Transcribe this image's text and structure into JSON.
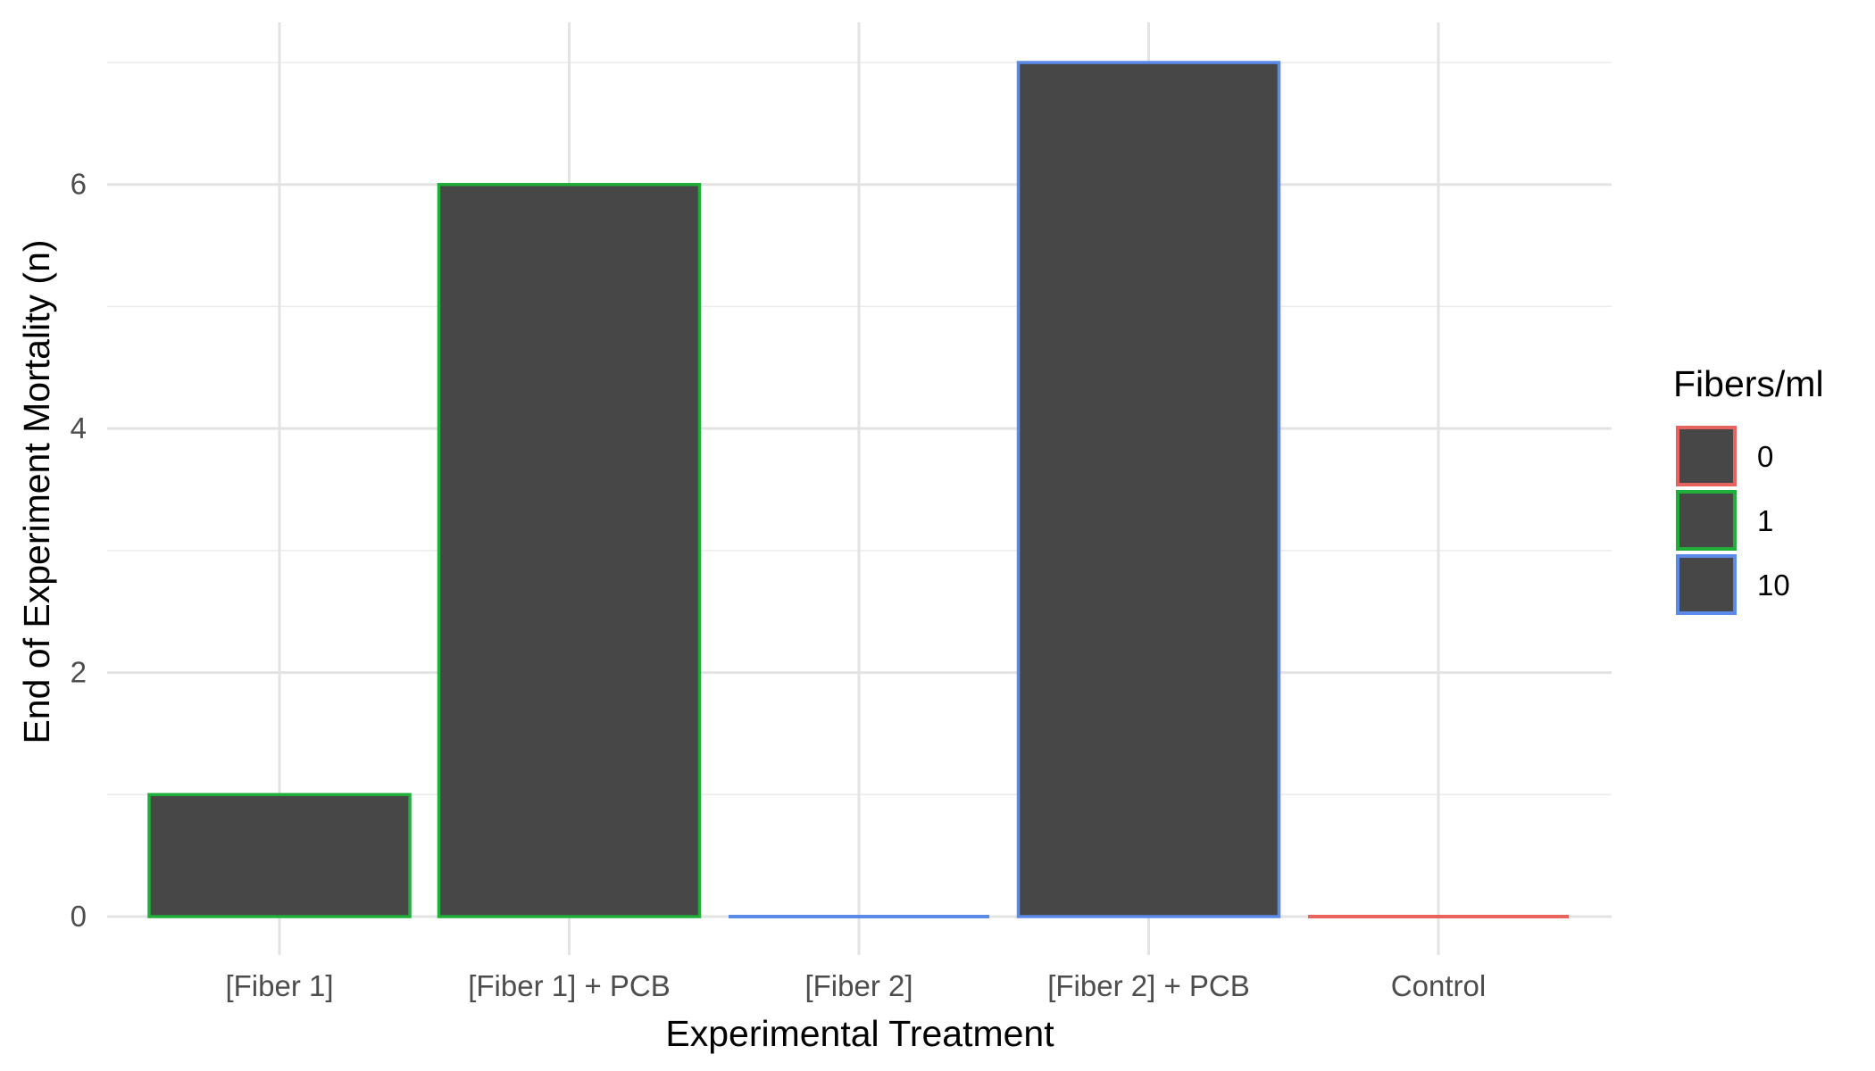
{
  "chart_data": {
    "type": "bar",
    "title": "",
    "xlabel": "Experimental Treatment",
    "ylabel": "End of Experiment Mortality (n)",
    "categories": [
      "[Fiber 1]",
      "[Fiber 1] + PCB",
      "[Fiber 2]",
      "[Fiber 2] + PCB",
      "Control"
    ],
    "values": [
      1,
      6,
      0,
      7,
      0
    ],
    "outline_group": [
      "1",
      "1",
      "10",
      "10",
      "0"
    ],
    "bar_fill": "#474747",
    "ylim": [
      0,
      7.2
    ],
    "yticks": [
      0,
      2,
      4,
      6
    ],
    "grid": true,
    "legend": {
      "title": "Fibers/ml",
      "placement": "right",
      "entries": [
        {
          "label": "0",
          "color": "#E8635E"
        },
        {
          "label": "1",
          "color": "#1FAE38"
        },
        {
          "label": "10",
          "color": "#5B8BEA"
        }
      ]
    }
  }
}
